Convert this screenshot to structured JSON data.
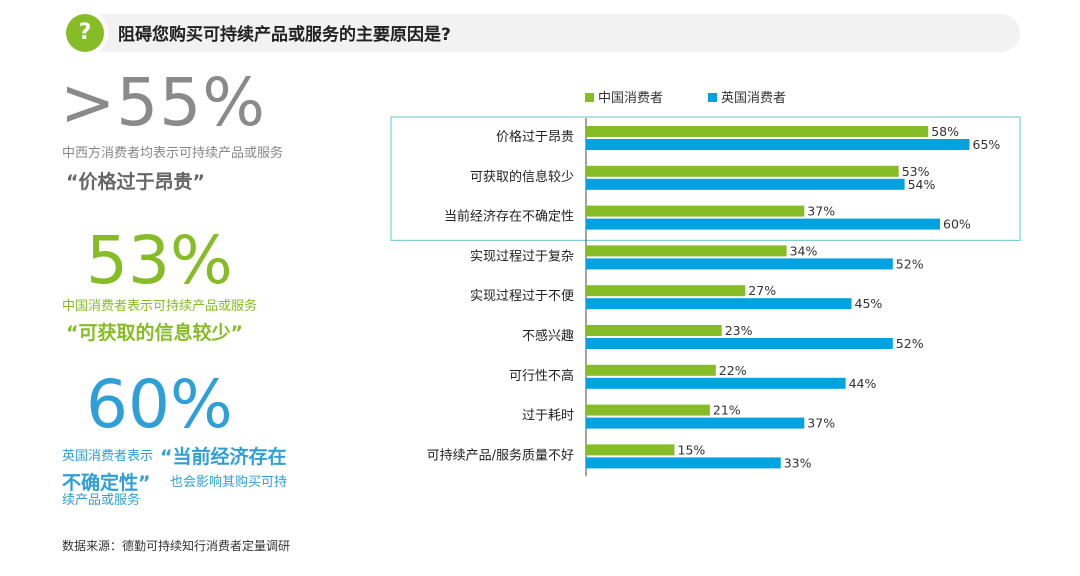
{
  "header": {
    "icon_glyph": "?",
    "question": "阻碍您购买可持续产品或服务的主要原因是?"
  },
  "stats": [
    {
      "number": ">55%",
      "color": "#888888",
      "desc": "中西方消费者均表示可持续产品或服务",
      "quote": "“价格过于昂贵”",
      "quote_color": "#666666"
    },
    {
      "number": "53%",
      "color": "#86bc25",
      "desc": "中国消费者表示可持续产品或服务",
      "quote": "“可获取的信息较少”",
      "quote_color": "#86bc25"
    },
    {
      "number": "60%",
      "color": "#2f9fd8",
      "desc_prefix": "英国消费者表示",
      "quote_line1": "“当前经济存在",
      "quote_line2": "不确定性”",
      "desc_suffix": "也会影响其购买可持",
      "desc_line3": "续产品或服务"
    }
  ],
  "source": "数据来源：德勤可持续知行消费者定量调研",
  "chart_data": {
    "type": "bar",
    "orientation": "horizontal",
    "categories": [
      "价格过于昂贵",
      "可获取的信息较少",
      "当前经济存在不确定性",
      "实现过程过于复杂",
      "实现过程过于不便",
      "不感兴趣",
      "可行性不高",
      "过于耗时",
      "可持续产品/服务质量不好"
    ],
    "series": [
      {
        "name": "中国消费者",
        "color": "#86bc25",
        "values": [
          58,
          53,
          37,
          34,
          27,
          23,
          22,
          21,
          15
        ]
      },
      {
        "name": "英国消费者",
        "color": "#00a3e0",
        "values": [
          65,
          54,
          60,
          52,
          45,
          52,
          44,
          37,
          33
        ]
      }
    ],
    "value_suffix": "%",
    "legend_position": "top",
    "highlight_box_categories": [
      "价格过于昂贵",
      "可获取的信息较少",
      "当前经济存在不确定性"
    ],
    "highlight_color": "#7fd0d0",
    "xlim": [
      0,
      100
    ],
    "grid": false
  }
}
